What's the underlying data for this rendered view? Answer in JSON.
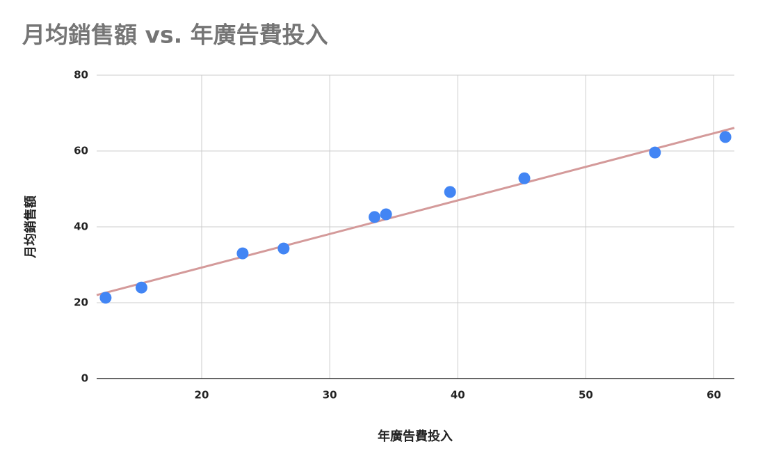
{
  "chart_data": {
    "type": "scatter",
    "title": "月均銷售額 vs. 年廣告費投入",
    "x_label": "年廣告費投入",
    "y_label": "月均銷售額",
    "series": [
      {
        "name": "月均銷售額",
        "color": "#4285f4",
        "x": [
          12.5,
          15.3,
          23.2,
          26.4,
          33.5,
          34.4,
          39.4,
          45.2,
          55.4,
          60.9
        ],
        "values": [
          21.3,
          24.0,
          33.0,
          34.3,
          42.6,
          43.3,
          49.2,
          52.8,
          59.6,
          63.7
        ]
      }
    ],
    "trendline": {
      "color": "#d49a9a",
      "x": [
        11.8,
        61.6
      ],
      "values": [
        22.0,
        66.1
      ]
    },
    "xlim": [
      11.8,
      61.6
    ],
    "xticks": [
      20,
      30,
      40,
      50,
      60
    ],
    "ylim": [
      0,
      80
    ],
    "yticks": [
      0,
      20,
      40,
      60,
      80
    ],
    "grid": true
  }
}
